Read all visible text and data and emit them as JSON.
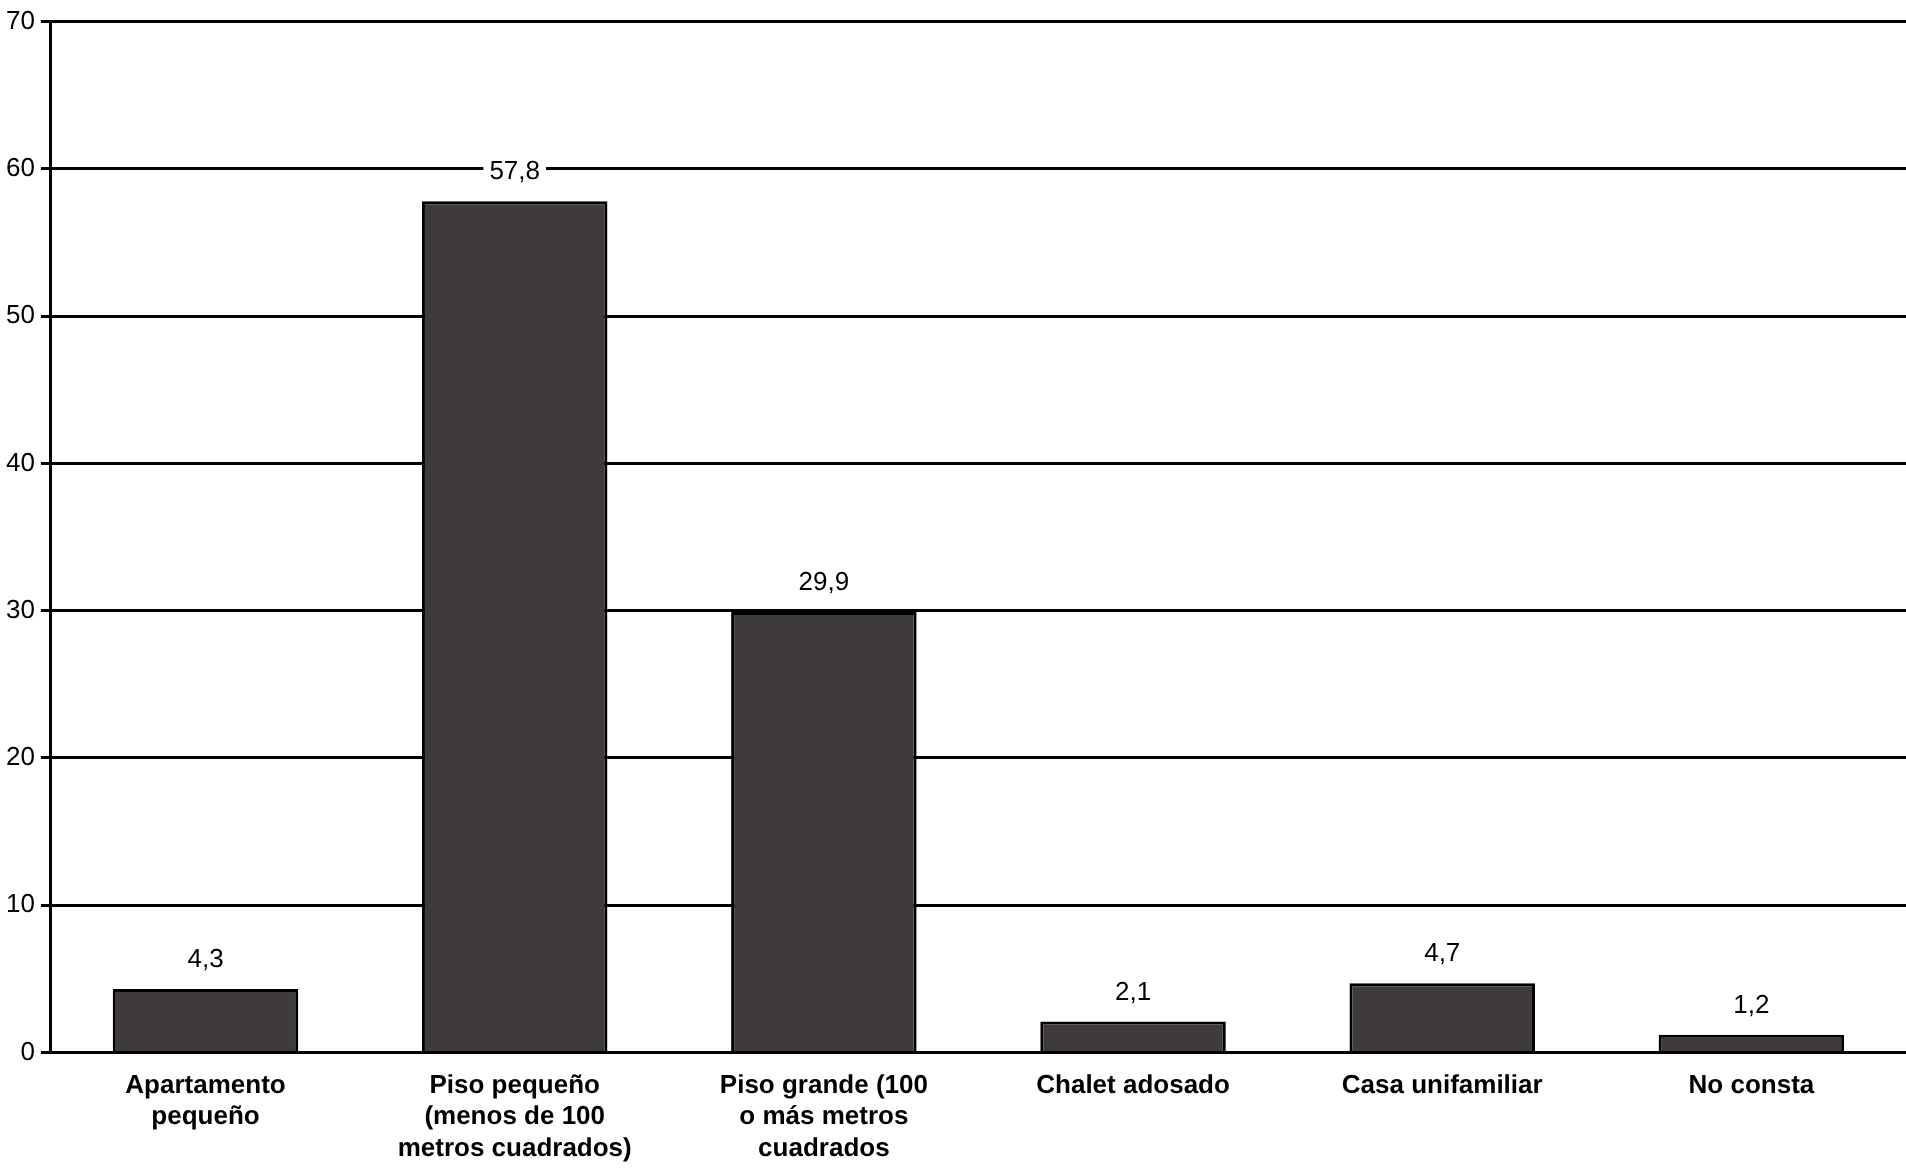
{
  "chart_data": {
    "type": "bar",
    "categories": [
      "Apartamento pequeño",
      "Piso pequeño (menos de 100 metros cuadrados)",
      "Piso grande (100 o más metros cuadrados",
      "Chalet adosado",
      "Casa unifamiliar",
      "No consta"
    ],
    "values": [
      4.3,
      57.8,
      29.9,
      2.1,
      4.7,
      1.2
    ],
    "value_labels": [
      "4,3",
      "57,8",
      "29,9",
      "2,1",
      "4,7",
      "1,2"
    ],
    "color": "#3f3b3b",
    "ylim": [
      0,
      70
    ],
    "yticks": [
      0,
      10,
      20,
      30,
      40,
      50,
      60,
      70
    ],
    "grid": "y",
    "legend": false
  }
}
